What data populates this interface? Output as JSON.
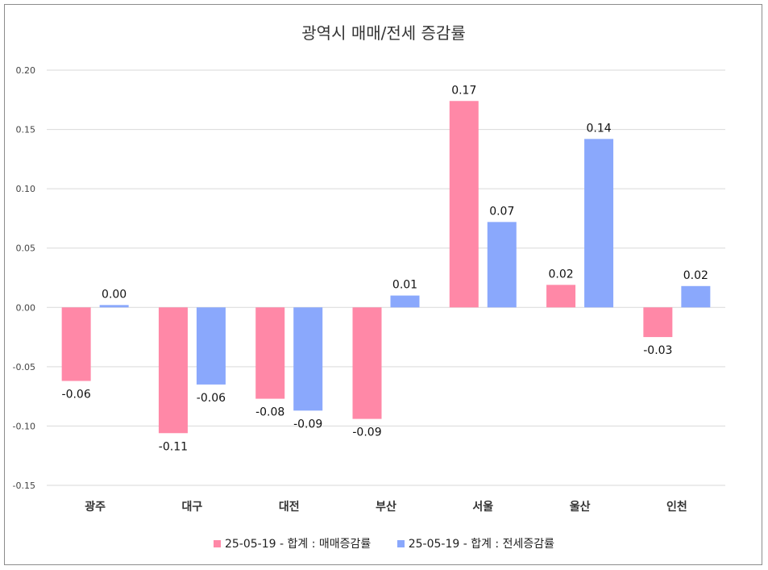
{
  "chart_data": {
    "type": "bar",
    "title": "광역시 매매/전세 증감률",
    "categories": [
      "광주",
      "대구",
      "대전",
      "부산",
      "서울",
      "울산",
      "인천"
    ],
    "series": [
      {
        "name": "25-05-19 - 합계 : 매매증감률",
        "color": "#ff88a7",
        "values": [
          -0.062,
          -0.106,
          -0.077,
          -0.094,
          0.174,
          0.019,
          -0.025
        ],
        "labels": [
          "-0.06",
          "-0.11",
          "-0.08",
          "-0.09",
          "0.17",
          "0.02",
          "-0.03"
        ]
      },
      {
        "name": "25-05-19 - 합계 : 전세증감률",
        "color": "#8aa8fc",
        "values": [
          0.002,
          -0.065,
          -0.087,
          0.01,
          0.072,
          0.142,
          0.018
        ],
        "labels": [
          "0.00",
          "-0.06",
          "-0.09",
          "0.01",
          "0.07",
          "0.14",
          "0.02"
        ]
      }
    ],
    "ylim": [
      -0.15,
      0.2
    ],
    "yticks": [
      0.2,
      0.15,
      0.1,
      0.05,
      0.0,
      -0.05,
      -0.1,
      -0.15
    ],
    "ytick_labels": [
      "0.20",
      "0.15",
      "0.10",
      "0.05",
      "0.00",
      "-0.05",
      "-0.10",
      "-0.15"
    ],
    "grid": true,
    "legend_position": "bottom"
  }
}
